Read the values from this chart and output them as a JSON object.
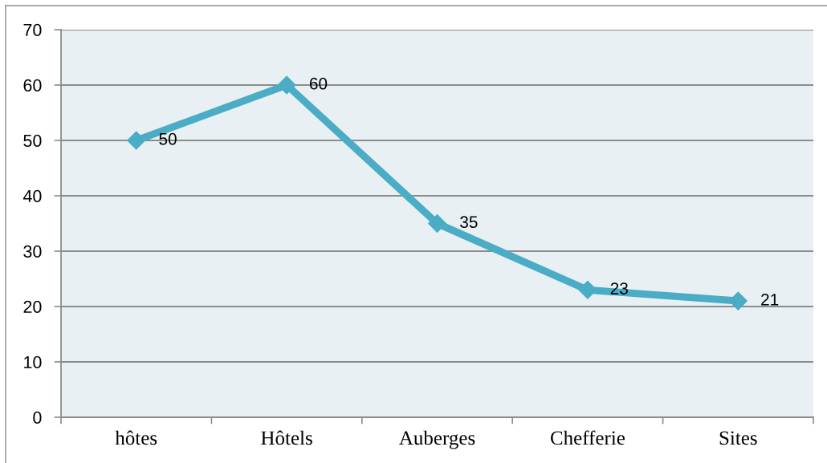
{
  "chart_data": {
    "type": "line",
    "categories": [
      "hôtes",
      "Hôtels",
      "Auberges",
      "Chefferie",
      "Sites"
    ],
    "series": [
      {
        "color": "#4bacc6",
        "values": [
          50,
          60,
          35,
          23,
          21
        ]
      }
    ],
    "ylim": [
      0,
      70
    ],
    "yticks": [
      0,
      10,
      20,
      30,
      40,
      50,
      60,
      70
    ],
    "grid": "y",
    "marker": "diamond",
    "line_style": "solid",
    "data_labels": true
  }
}
